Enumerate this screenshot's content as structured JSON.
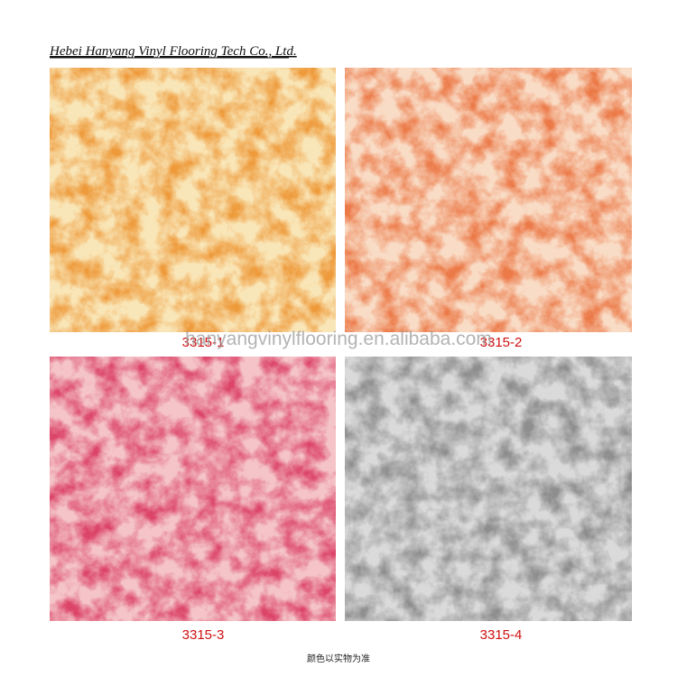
{
  "header": {
    "title": "Hebei Hanyang Vinyl Flooring Tech Co., Ltd."
  },
  "tiles": [
    {
      "label": "3315-1"
    },
    {
      "label": "3315-2"
    },
    {
      "label": "3315-3"
    },
    {
      "label": "3315-4"
    }
  ],
  "watermark": "hanyangvinylflooring.en.alibaba.com",
  "footnote": "颜色以实物为准"
}
